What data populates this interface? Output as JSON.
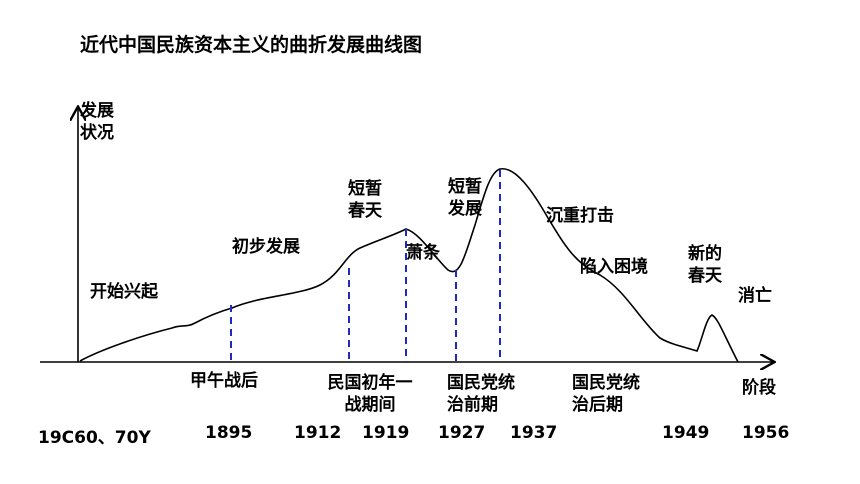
{
  "title": "近代中国民族资本主义的曲折发展曲线图",
  "y_axis_label": "发展状况",
  "x_axis_label": "阶段",
  "stages": [
    "开始兴起",
    "初步发展",
    "短暂春天",
    "萧条",
    "短暂发展",
    "沉重打击",
    "陷入困境",
    "新的春天",
    "消亡"
  ],
  "periods": [
    "甲午战后",
    "民国初年一战期间",
    "国民党统治前期",
    "国民党统治后期"
  ],
  "years": [
    "19C60、70Y",
    "1895",
    "1912",
    "1919",
    "1927",
    "1937",
    "1949",
    "1956"
  ],
  "colors": {
    "curve": "#000000",
    "divider": "#1f2bbf"
  }
}
